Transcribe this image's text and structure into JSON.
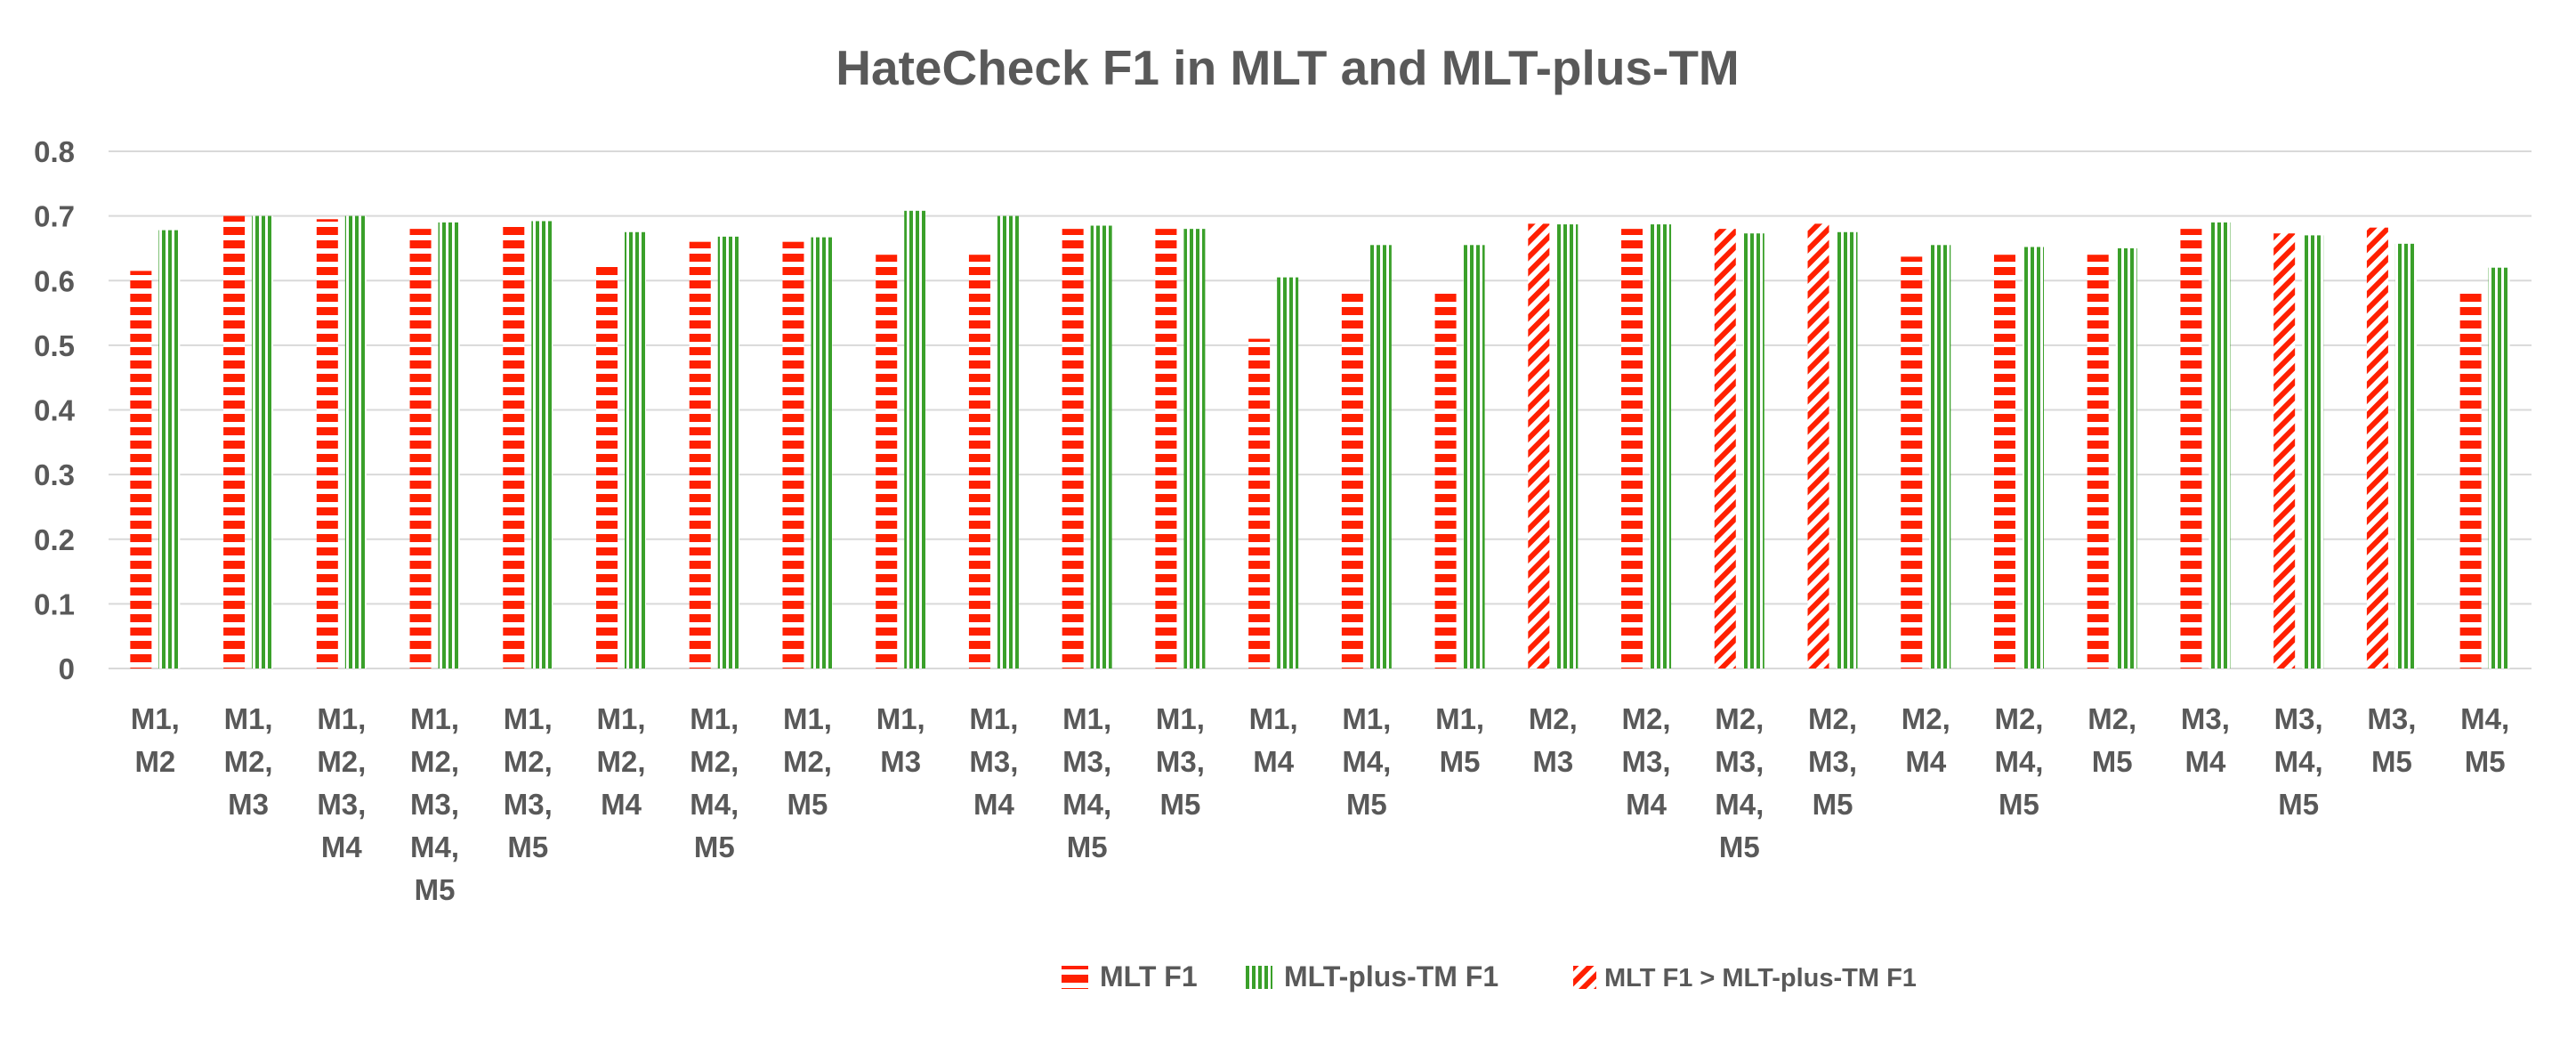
{
  "chart_data": {
    "type": "bar",
    "title": "HateCheck F1 in MLT and MLT-plus-TM",
    "xlabel": "",
    "ylabel": "",
    "ylim": [
      0,
      0.8
    ],
    "yticks": [
      "0",
      "0.1",
      "0.2",
      "0.3",
      "0.4",
      "0.5",
      "0.6",
      "0.7",
      "0.8"
    ],
    "grid": true,
    "legend_position": "bottom",
    "categories": [
      [
        "M1,",
        "M2"
      ],
      [
        "M1,",
        "M2,",
        "M3"
      ],
      [
        "M1,",
        "M2,",
        "M3,",
        "M4"
      ],
      [
        "M1,",
        "M2,",
        "M3,",
        "M4,",
        "M5"
      ],
      [
        "M1,",
        "M2,",
        "M3,",
        "M5"
      ],
      [
        "M1,",
        "M2,",
        "M4"
      ],
      [
        "M1,",
        "M2,",
        "M4,",
        "M5"
      ],
      [
        "M1,",
        "M2,",
        "M5"
      ],
      [
        "M1,",
        "M3"
      ],
      [
        "M1,",
        "M3,",
        "M4"
      ],
      [
        "M1,",
        "M3,",
        "M4,",
        "M5"
      ],
      [
        "M1,",
        "M3,",
        "M5"
      ],
      [
        "M1,",
        "M4"
      ],
      [
        "M1,",
        "M4,",
        "M5"
      ],
      [
        "M1,",
        "M5"
      ],
      [
        "M2,",
        "M3"
      ],
      [
        "M2,",
        "M3,",
        "M4"
      ],
      [
        "M2,",
        "M3,",
        "M4,",
        "M5"
      ],
      [
        "M2,",
        "M3,",
        "M5"
      ],
      [
        "M2,",
        "M4"
      ],
      [
        "M2,",
        "M4,",
        "M5"
      ],
      [
        "M2,",
        "M5"
      ],
      [
        "M3,",
        "M4"
      ],
      [
        "M3,",
        "M4,",
        "M5"
      ],
      [
        "M3,",
        "M5"
      ],
      [
        "M4,",
        "M5"
      ]
    ],
    "series": [
      {
        "name": "MLT F1",
        "values": [
          0.615,
          0.7,
          0.695,
          0.68,
          0.69,
          0.622,
          0.66,
          0.66,
          0.64,
          0.64,
          0.68,
          0.68,
          0.51,
          0.585,
          0.585,
          0.688,
          0.68,
          0.68,
          0.688,
          0.637,
          0.64,
          0.64,
          0.68,
          0.673,
          0.682,
          0.582
        ]
      },
      {
        "name": "MLT-plus-TM F1",
        "values": [
          0.678,
          0.7,
          0.7,
          0.69,
          0.692,
          0.675,
          0.668,
          0.667,
          0.708,
          0.7,
          0.685,
          0.68,
          0.605,
          0.655,
          0.655,
          0.687,
          0.687,
          0.673,
          0.675,
          0.655,
          0.652,
          0.65,
          0.69,
          0.67,
          0.657,
          0.62
        ]
      }
    ],
    "highlight": {
      "label": "MLT F1 > MLT-plus-TM F1",
      "category_indices": [
        15,
        17,
        18,
        23,
        24
      ]
    },
    "colors": {
      "mlt": "#ff2000",
      "tm": "#3aa02a",
      "grid": "#d9d9d9",
      "text": "#595959"
    }
  }
}
